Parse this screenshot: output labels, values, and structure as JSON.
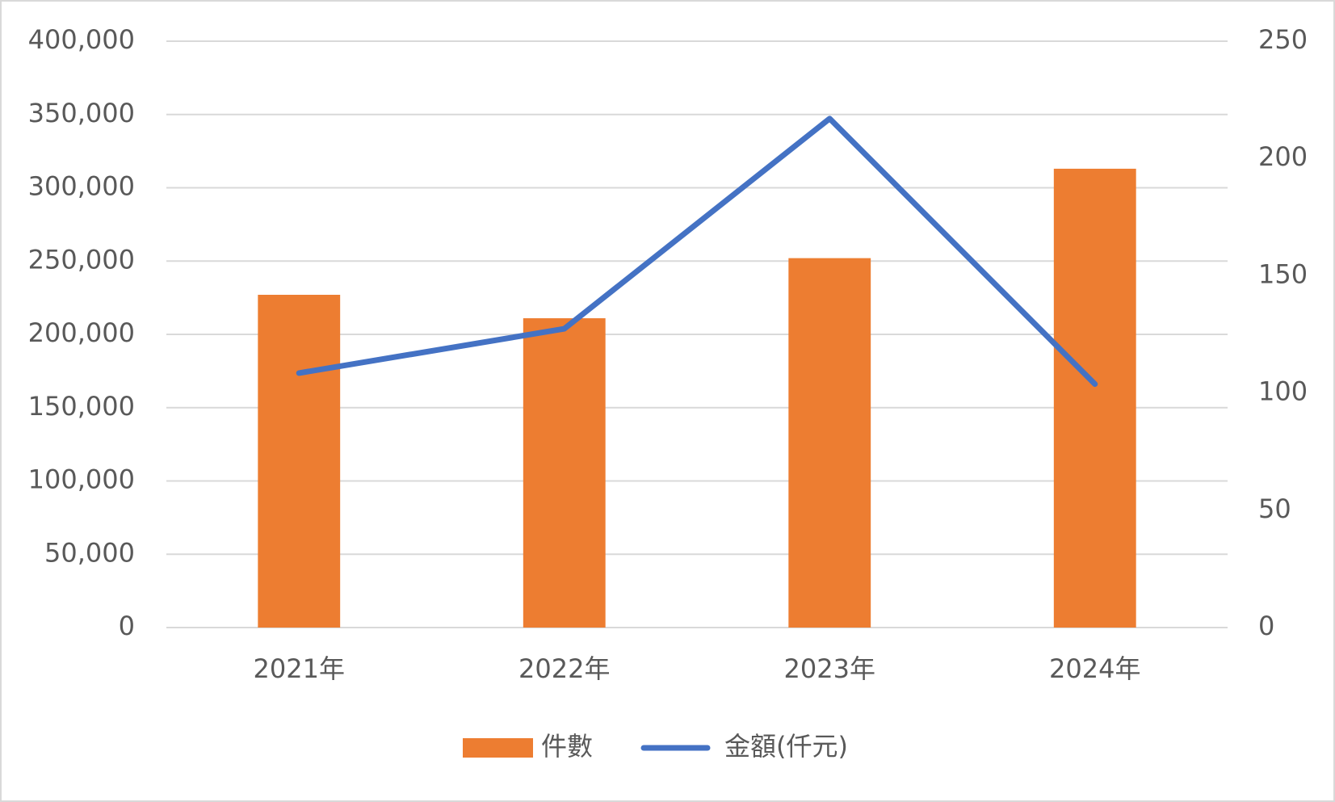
{
  "chart_data": {
    "type": "bar-line",
    "categories": [
      "2021年",
      "2022年",
      "2023年",
      "2024年"
    ],
    "series": [
      {
        "name": "件數",
        "color": "#ed7d31",
        "type": "bar",
        "values": [
          227000,
          211000,
          252000,
          313000
        ]
      },
      {
        "name": "金額(仟元)",
        "color": "#4472c4",
        "type": "line",
        "axis": "y2",
        "values": [
          108.5,
          127.4,
          217,
          103.8
        ]
      }
    ],
    "ylim": [
      0,
      400000
    ],
    "yticks": [
      0,
      {
        "value": 50000,
        "label": "50,000"
      },
      {
        "value": 100000,
        "label": "100,000"
      },
      {
        "value": 150000,
        "label": "150,000"
      },
      {
        "value": 200000,
        "label": "200,000"
      },
      {
        "value": 250000,
        "label": "250,000"
      },
      {
        "value": 300000,
        "label": "300,000"
      },
      {
        "value": 350000,
        "label": "350,000"
      },
      {
        "value": 400000,
        "label": "400,000"
      }
    ],
    "y2lim": [
      0,
      250
    ],
    "y2ticks": [
      0,
      50,
      100,
      150,
      200,
      250
    ],
    "grid": true,
    "legend": "bottom"
  }
}
